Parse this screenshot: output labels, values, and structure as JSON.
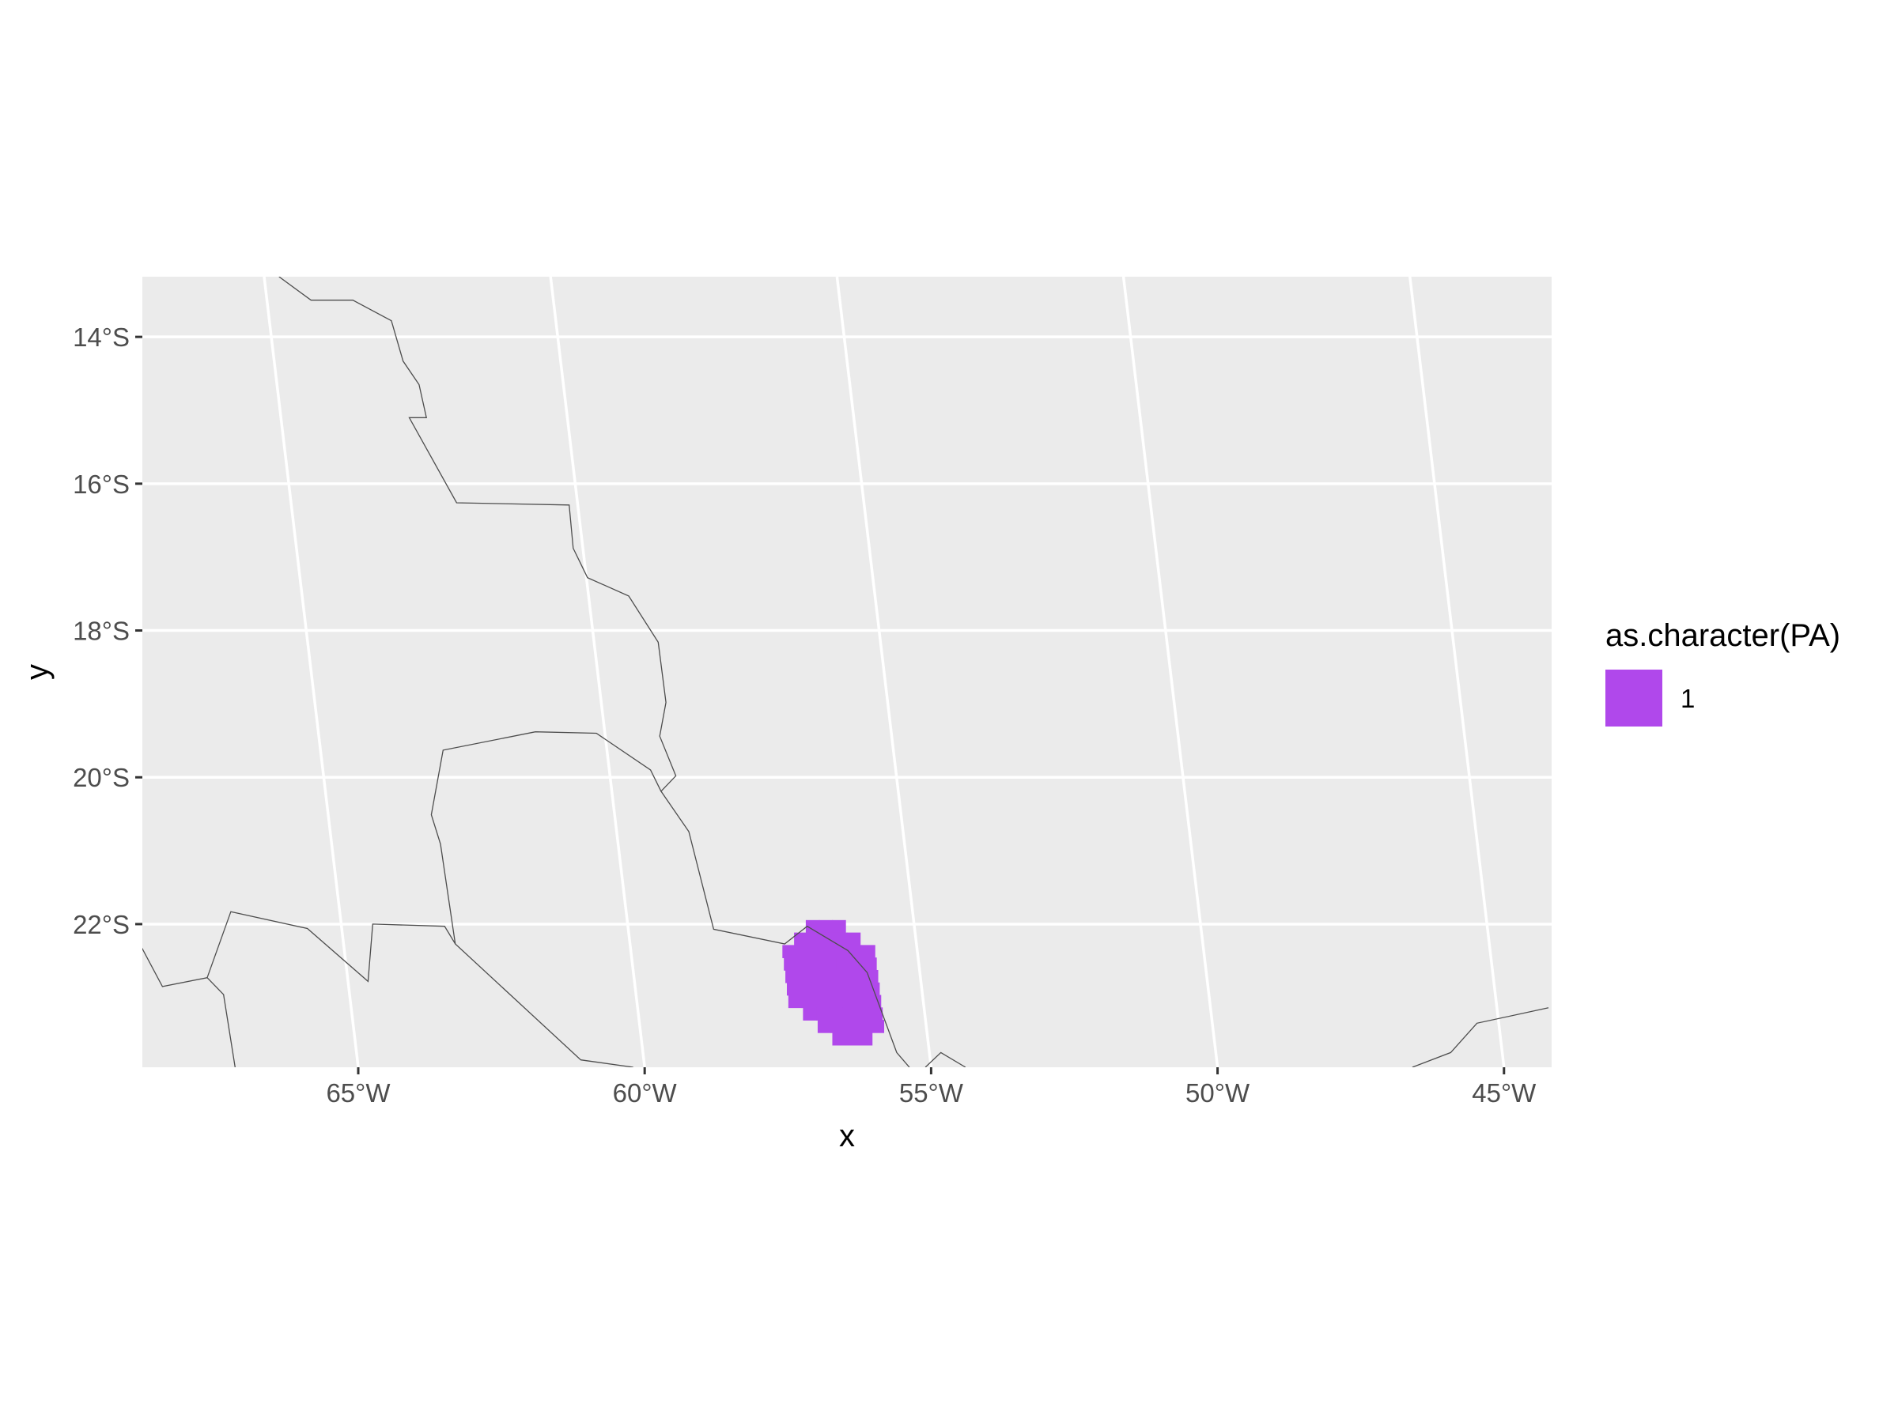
{
  "map": {
    "x_label": "x",
    "y_label": "y",
    "lon_ticks": [
      {
        "lon": -65,
        "label": "65°W"
      },
      {
        "lon": -60,
        "label": "60°W"
      },
      {
        "lon": -55,
        "label": "55°W"
      },
      {
        "lon": -50,
        "label": "50°W"
      },
      {
        "lon": -45,
        "label": "45°W"
      }
    ],
    "lat_ticks": [
      {
        "lat": -14,
        "label": "14°S"
      },
      {
        "lat": -16,
        "label": "16°S"
      },
      {
        "lat": -18,
        "label": "18°S"
      },
      {
        "lat": -20,
        "label": "20°S"
      },
      {
        "lat": -22,
        "label": "22°S"
      }
    ],
    "extent": {
      "lon": [
        -68.7,
        -44.1
      ],
      "lat": [
        -23.95,
        -13.18
      ]
    },
    "colors": {
      "panel": "#ebebeb",
      "grid": "#ffffff",
      "border": "#4d4d4d",
      "fill": "#b048eb"
    },
    "legend": {
      "title": "as.character(PA)",
      "entries": [
        {
          "label": "1",
          "color": "#b048eb"
        }
      ]
    },
    "borders": [
      [
        [
          -64.74,
          -13.18
        ],
        [
          -64.23,
          -13.5
        ],
        [
          -63.5,
          -13.5
        ],
        [
          -62.87,
          -13.78
        ],
        [
          -62.75,
          -14.33
        ],
        [
          -62.52,
          -14.65
        ],
        [
          -62.46,
          -15.1
        ],
        [
          -62.76,
          -15.1
        ],
        [
          -62.11,
          -16.26
        ],
        [
          -60.15,
          -16.29
        ],
        [
          -60.17,
          -16.88
        ],
        [
          -59.98,
          -17.28
        ],
        [
          -59.3,
          -17.53
        ],
        [
          -58.88,
          -18.16
        ],
        [
          -58.87,
          -18.98
        ],
        [
          -59.05,
          -19.44
        ],
        [
          -58.85,
          -19.98
        ],
        [
          -59.14,
          -20.19
        ],
        [
          -58.74,
          -20.74
        ],
        [
          -58.51,
          -22.07
        ],
        [
          -57.3,
          -22.27
        ],
        [
          -56.87,
          -22.03
        ],
        [
          -56.21,
          -22.36
        ],
        [
          -55.92,
          -22.66
        ],
        [
          -55.57,
          -23.75
        ],
        [
          -55.38,
          -23.95
        ]
      ],
      [
        [
          -55.1,
          -23.95
        ],
        [
          -54.8,
          -23.75
        ],
        [
          -54.4,
          -23.95
        ]
      ],
      [
        [
          -68.7,
          -22.0
        ],
        [
          -68.25,
          -22.85
        ],
        [
          -67.45,
          -22.73
        ],
        [
          -67.2,
          -22.96
        ],
        [
          -67.15,
          -23.95
        ]
      ],
      [
        [
          -67.45,
          -22.73
        ],
        [
          -66.9,
          -21.83
        ],
        [
          -65.6,
          -22.06
        ],
        [
          -64.65,
          -22.78
        ],
        [
          -64.45,
          -22.0
        ],
        [
          -63.2,
          -22.03
        ],
        [
          -63.05,
          -22.27
        ],
        [
          -61.1,
          -23.85
        ],
        [
          -60.2,
          -23.95
        ]
      ],
      [
        [
          -63.05,
          -22.27
        ],
        [
          -63.1,
          -20.91
        ],
        [
          -63.2,
          -20.51
        ],
        [
          -62.86,
          -19.63
        ],
        [
          -61.21,
          -19.38
        ],
        [
          -60.15,
          -19.4
        ],
        [
          -59.28,
          -19.9
        ],
        [
          -59.14,
          -20.19
        ]
      ],
      [
        [
          -46.6,
          -23.95
        ],
        [
          -45.9,
          -23.75
        ],
        [
          -45.38,
          -23.35
        ],
        [
          -44.1,
          -23.14
        ]
      ]
    ],
    "protected_area_cells": [
      [
        -56.78,
        -22.03
      ],
      [
        -56.55,
        -22.03
      ],
      [
        -56.32,
        -22.03
      ],
      [
        -57.01,
        -22.2
      ],
      [
        -56.78,
        -22.2
      ],
      [
        -56.55,
        -22.2
      ],
      [
        -56.32,
        -22.2
      ],
      [
        -56.09,
        -22.2
      ],
      [
        -57.24,
        -22.37
      ],
      [
        -57.01,
        -22.37
      ],
      [
        -56.78,
        -22.37
      ],
      [
        -56.55,
        -22.37
      ],
      [
        -56.32,
        -22.37
      ],
      [
        -56.09,
        -22.37
      ],
      [
        -55.86,
        -22.37
      ],
      [
        -57.24,
        -22.54
      ],
      [
        -57.01,
        -22.54
      ],
      [
        -56.78,
        -22.54
      ],
      [
        -56.55,
        -22.54
      ],
      [
        -56.32,
        -22.54
      ],
      [
        -56.09,
        -22.54
      ],
      [
        -55.86,
        -22.54
      ],
      [
        -57.24,
        -22.71
      ],
      [
        -57.01,
        -22.71
      ],
      [
        -56.78,
        -22.71
      ],
      [
        -56.55,
        -22.71
      ],
      [
        -56.32,
        -22.71
      ],
      [
        -56.09,
        -22.71
      ],
      [
        -55.86,
        -22.71
      ],
      [
        -57.24,
        -22.88
      ],
      [
        -57.01,
        -22.88
      ],
      [
        -56.78,
        -22.88
      ],
      [
        -56.55,
        -22.88
      ],
      [
        -56.32,
        -22.88
      ],
      [
        -56.09,
        -22.88
      ],
      [
        -55.86,
        -22.88
      ],
      [
        -57.24,
        -23.05
      ],
      [
        -57.01,
        -23.05
      ],
      [
        -56.78,
        -23.05
      ],
      [
        -56.55,
        -23.05
      ],
      [
        -56.32,
        -23.05
      ],
      [
        -56.09,
        -23.05
      ],
      [
        -55.86,
        -23.05
      ],
      [
        -57.01,
        -23.22
      ],
      [
        -56.78,
        -23.22
      ],
      [
        -56.55,
        -23.22
      ],
      [
        -56.32,
        -23.22
      ],
      [
        -56.09,
        -23.22
      ],
      [
        -55.86,
        -23.22
      ],
      [
        -56.78,
        -23.39
      ],
      [
        -56.55,
        -23.39
      ],
      [
        -56.32,
        -23.39
      ],
      [
        -56.09,
        -23.39
      ],
      [
        -55.86,
        -23.39
      ],
      [
        -56.55,
        -23.56
      ],
      [
        -56.32,
        -23.56
      ],
      [
        -56.09,
        -23.56
      ]
    ]
  }
}
